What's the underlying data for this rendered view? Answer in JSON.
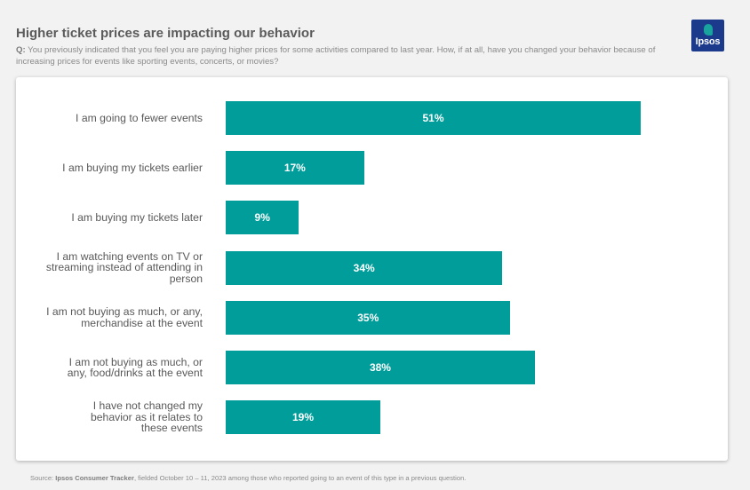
{
  "header": {
    "title": "Higher ticket prices are impacting our behavior",
    "question_prefix": "Q:",
    "question": "You previously indicated that you feel you are paying higher prices for some activities compared to last year. How, if at all, have you changed your behavior because of increasing prices for events like sporting events, concerts, or movies?"
  },
  "logo": {
    "text": "Ipsos"
  },
  "chart_data": {
    "type": "bar",
    "orientation": "horizontal",
    "categories": [
      "I am going to fewer events",
      "I am buying my tickets earlier",
      "I am buying my tickets later",
      "I am watching events on TV or streaming instead of attending in person",
      "I am not buying as much, or any, merchandise at the event",
      "I am not buying as much, or any, food/drinks at the event",
      "I have not changed my behavior as it relates to these events"
    ],
    "values": [
      51,
      17,
      9,
      34,
      35,
      38,
      19
    ],
    "value_labels": [
      "51%",
      "17%",
      "9%",
      "34%",
      "35%",
      "38%",
      "19%"
    ],
    "bar_color": "#009d9a",
    "xlim": [
      0,
      100
    ],
    "grid": false,
    "legend": "none"
  },
  "footer": {
    "source_prefix": "Source:",
    "source_name": "Ipsos Consumer Tracker",
    "source_rest": ", fielded October 10 – 11, 2023 among those who reported going to an event of this type in a previous question."
  }
}
